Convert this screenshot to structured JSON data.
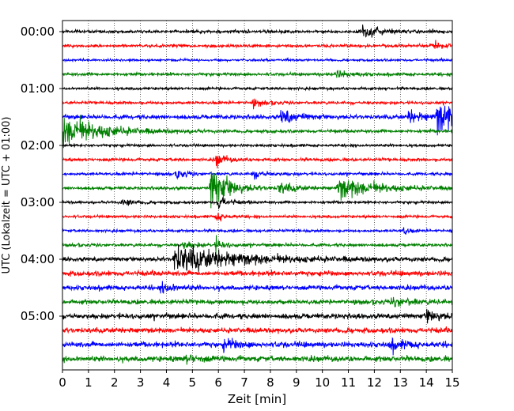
{
  "chart_data": {
    "type": "line",
    "title": "",
    "xlabel": "Zeit  [min]",
    "ylabel": "UTC (Lokalzeit = UTC + 01:00)",
    "xlim": [
      0,
      15
    ],
    "x_ticks": [
      "0",
      "1",
      "2",
      "3",
      "4",
      "5",
      "6",
      "7",
      "8",
      "9",
      "10",
      "11",
      "12",
      "13",
      "14",
      "15"
    ],
    "y_tick_labels": [
      "00:00",
      "01:00",
      "02:00",
      "03:00",
      "04:00",
      "05:00"
    ],
    "row_interval_minutes": 15,
    "rows": 24,
    "grid": "vertical dotted lines at each minute",
    "colors": [
      "#000000",
      "#ff0000",
      "#0000ff",
      "#008000"
    ],
    "series": [
      {
        "time": "00:00",
        "color": "#000000",
        "noise": 1.6,
        "events": [
          {
            "t": 11.5,
            "amp": 9,
            "dur": 0.5
          }
        ]
      },
      {
        "time": "00:15",
        "color": "#ff0000",
        "noise": 1.6,
        "events": [
          {
            "t": 14.2,
            "amp": 3,
            "dur": 0.4
          }
        ]
      },
      {
        "time": "00:30",
        "color": "#0000ff",
        "noise": 1.2,
        "events": []
      },
      {
        "time": "00:45",
        "color": "#008000",
        "noise": 1.6,
        "events": [
          {
            "t": 10.5,
            "amp": 4,
            "dur": 0.5
          }
        ]
      },
      {
        "time": "01:00",
        "color": "#000000",
        "noise": 1.4,
        "events": []
      },
      {
        "time": "01:15",
        "color": "#ff0000",
        "noise": 1.5,
        "events": [
          {
            "t": 7.3,
            "amp": 4,
            "dur": 0.4
          }
        ]
      },
      {
        "time": "01:30",
        "color": "#0000ff",
        "noise": 2.2,
        "events": [
          {
            "t": 8.4,
            "amp": 8,
            "dur": 0.6
          },
          {
            "t": 14.4,
            "amp": 16,
            "dur": 1.4
          },
          {
            "t": 13.3,
            "amp": 6,
            "dur": 0.6
          }
        ]
      },
      {
        "time": "01:45",
        "color": "#008000",
        "noise": 1.6,
        "events": [
          {
            "t": 0.0,
            "amp": 18,
            "dur": 1.4
          }
        ]
      },
      {
        "time": "02:00",
        "color": "#000000",
        "noise": 1.4,
        "events": []
      },
      {
        "time": "02:15",
        "color": "#ff0000",
        "noise": 1.6,
        "events": [
          {
            "t": 5.9,
            "amp": 8,
            "dur": 0.3
          }
        ]
      },
      {
        "time": "02:30",
        "color": "#0000ff",
        "noise": 1.5,
        "events": [
          {
            "t": 4.4,
            "amp": 5,
            "dur": 0.3
          },
          {
            "t": 7.3,
            "amp": 4,
            "dur": 0.5
          }
        ]
      },
      {
        "time": "02:45",
        "color": "#008000",
        "noise": 1.6,
        "events": [
          {
            "t": 5.7,
            "amp": 28,
            "dur": 0.6
          },
          {
            "t": 10.6,
            "amp": 12,
            "dur": 1.4
          },
          {
            "t": 8.3,
            "amp": 6,
            "dur": 0.6
          }
        ]
      },
      {
        "time": "03:00",
        "color": "#000000",
        "noise": 1.4,
        "events": [
          {
            "t": 2.3,
            "amp": 4,
            "dur": 0.4
          },
          {
            "t": 6.0,
            "amp": 8,
            "dur": 0.3
          }
        ]
      },
      {
        "time": "03:15",
        "color": "#ff0000",
        "noise": 1.4,
        "events": [
          {
            "t": 5.9,
            "amp": 5,
            "dur": 0.3
          }
        ]
      },
      {
        "time": "03:30",
        "color": "#0000ff",
        "noise": 1.4,
        "events": [
          {
            "t": 13.1,
            "amp": 5,
            "dur": 0.2
          }
        ]
      },
      {
        "time": "03:45",
        "color": "#008000",
        "noise": 1.6,
        "events": [
          {
            "t": 5.9,
            "amp": 6,
            "dur": 0.3
          },
          {
            "t": 4.6,
            "amp": 4,
            "dur": 0.5
          }
        ]
      },
      {
        "time": "04:00",
        "color": "#000000",
        "noise": 2.2,
        "events": [
          {
            "t": 4.3,
            "amp": 14,
            "dur": 2.4
          }
        ]
      },
      {
        "time": "04:15",
        "color": "#ff0000",
        "noise": 2.6,
        "events": []
      },
      {
        "time": "04:30",
        "color": "#0000ff",
        "noise": 2.5,
        "events": [
          {
            "t": 3.8,
            "amp": 5,
            "dur": 0.5
          }
        ]
      },
      {
        "time": "04:45",
        "color": "#008000",
        "noise": 2.4,
        "events": [
          {
            "t": 12.7,
            "amp": 4,
            "dur": 0.6
          }
        ]
      },
      {
        "time": "05:00",
        "color": "#000000",
        "noise": 2.7,
        "events": [
          {
            "t": 14.0,
            "amp": 7,
            "dur": 0.4
          }
        ]
      },
      {
        "time": "05:15",
        "color": "#ff0000",
        "noise": 2.7,
        "events": []
      },
      {
        "time": "05:30",
        "color": "#0000ff",
        "noise": 2.8,
        "events": [
          {
            "t": 6.2,
            "amp": 5,
            "dur": 0.6
          },
          {
            "t": 12.6,
            "amp": 5,
            "dur": 0.6
          }
        ]
      },
      {
        "time": "05:45",
        "color": "#008000",
        "noise": 2.9,
        "events": [
          {
            "t": 4.7,
            "amp": 4,
            "dur": 0.5
          }
        ]
      }
    ]
  }
}
